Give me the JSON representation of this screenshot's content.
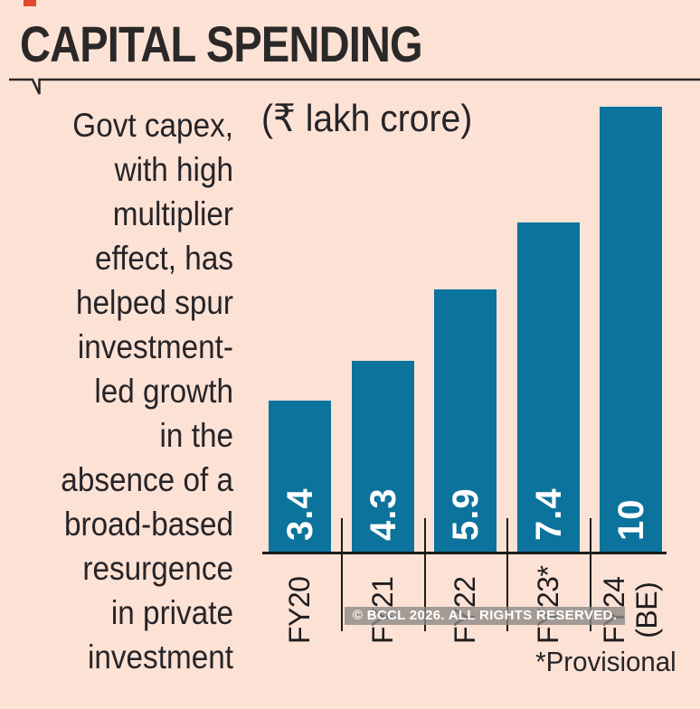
{
  "title": "CAPITAL SPENDING",
  "description": "Govt capex,\nwith high\nmultiplier\neffect, has\nhelped spur\ninvestment-\nled growth\nin the\nabsence of a\nbroad-based\nresurgence\nin private\ninvestment",
  "footnote": "*Provisional",
  "watermark": "© BCCL 2026. ALL RIGHTS RESERVED.",
  "chart_data": {
    "type": "bar",
    "title": "CAPITAL SPENDING",
    "unit_label": "(₹ lakh crore)",
    "categories": [
      "FY20",
      "FY21",
      "FY22",
      "FY23*",
      "FY24 (BE)"
    ],
    "values": [
      3.4,
      4.3,
      5.9,
      7.4,
      10
    ],
    "ylim": [
      0,
      10
    ],
    "grid": "off",
    "bar_color": "#0c739c",
    "value_label_color": "#ffffff",
    "background_color": "#fce2d5",
    "axis_color": "#1b1b1b",
    "footnote": "*Provisional"
  }
}
